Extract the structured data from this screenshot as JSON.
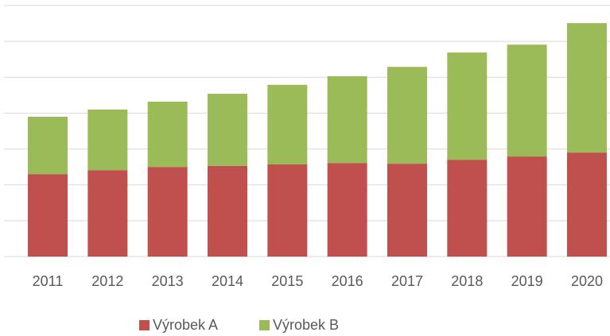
{
  "chart_data": {
    "type": "stacked_bar",
    "categories": [
      "2011",
      "2012",
      "2013",
      "2014",
      "2015",
      "2016",
      "2017",
      "2018",
      "2019",
      "2020"
    ],
    "series": [
      {
        "name": "Výrobek A",
        "color": "#c0504d",
        "values": [
          2.3,
          2.41,
          2.5,
          2.53,
          2.57,
          2.61,
          2.59,
          2.7,
          2.79,
          2.9
        ]
      },
      {
        "name": "Výrobek B",
        "color": "#9bbb59",
        "values": [
          1.6,
          1.69,
          1.82,
          2.01,
          2.22,
          2.42,
          2.7,
          2.99,
          3.12,
          3.61
        ]
      }
    ],
    "ylim": [
      0,
      7
    ],
    "yticks": [
      0,
      1,
      2,
      3,
      4,
      5,
      6,
      7
    ],
    "grid": true,
    "legend": "bottom"
  }
}
